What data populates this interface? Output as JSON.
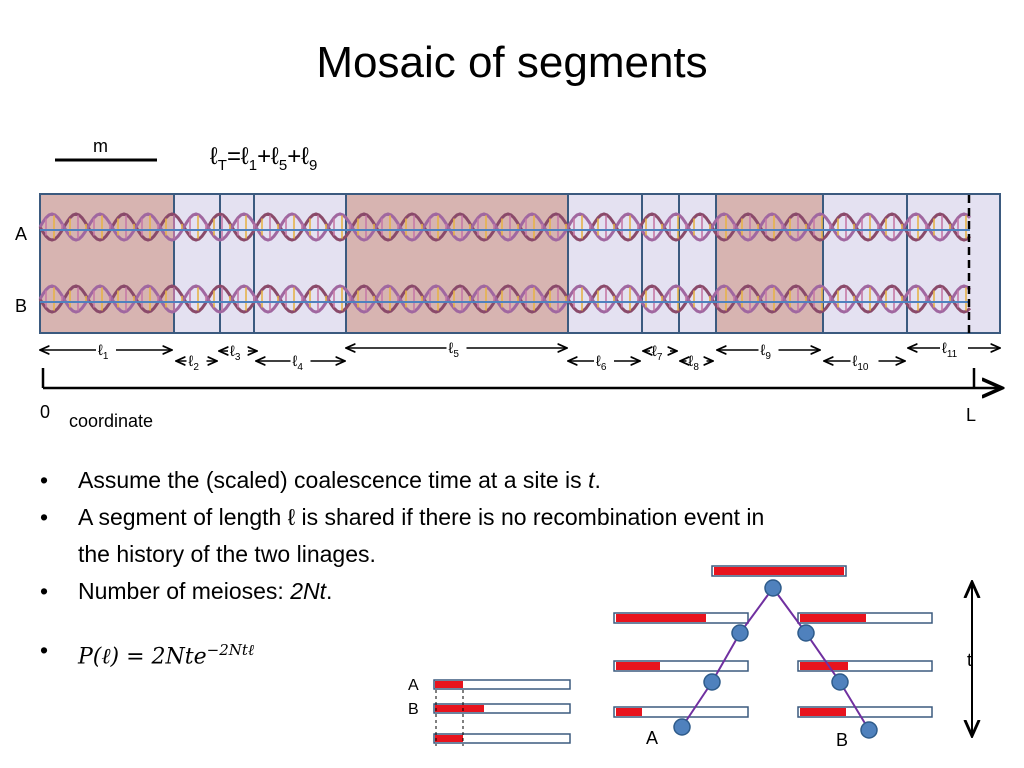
{
  "title": "Mosaic of segments",
  "scale_label": "m",
  "formula_total": {
    "base": "ℓ",
    "sub": "T",
    "eq": "=ℓ",
    "s1": "1",
    "plus1": "+ℓ",
    "s5": "5",
    "plus2": "+ℓ",
    "s9": "9"
  },
  "chromosome_labels": {
    "a": "A",
    "b": "B"
  },
  "segments": [
    {
      "label": "ℓ",
      "sub": "1",
      "shared": true
    },
    {
      "label": "ℓ",
      "sub": "2",
      "shared": false
    },
    {
      "label": "ℓ",
      "sub": "3",
      "shared": false
    },
    {
      "label": "ℓ",
      "sub": "4",
      "shared": false
    },
    {
      "label": "ℓ",
      "sub": "5",
      "shared": true
    },
    {
      "label": "ℓ",
      "sub": "6",
      "shared": false
    },
    {
      "label": "ℓ",
      "sub": "7",
      "shared": false
    },
    {
      "label": "ℓ",
      "sub": "8",
      "shared": false
    },
    {
      "label": "ℓ",
      "sub": "9",
      "shared": true
    },
    {
      "label": "ℓ",
      "sub": "10",
      "shared": false
    },
    {
      "label": "ℓ",
      "sub": "11",
      "shared": false
    }
  ],
  "axis": {
    "start": "0",
    "end": "L",
    "label": "coordinate"
  },
  "bullets": {
    "b1_pre": "Assume the (scaled) coalescence time at a site is ",
    "b1_var": "t",
    "b1_post": ".",
    "b2_line1": "A segment of length ℓ is shared if there is no recombination event in",
    "b2_line2": "the history of the two linages.",
    "b3_pre": "Number of meioses: ",
    "b3_var": "2Nt",
    "b3_post": ".",
    "b4_formula": "P(ℓ) = 2Nte",
    "b4_exp": "−2Ntℓ"
  },
  "small_diagram": {
    "label_a": "A",
    "label_b": "B"
  },
  "tree": {
    "leaf_a": "A",
    "leaf_b": "B",
    "time_label": "t"
  },
  "colors": {
    "shared": "#d7b4b1",
    "unshared": "#e4e1f1",
    "border": "#3b5a7f",
    "red": "#e8141e",
    "node": "#4f81bd",
    "edge": "#7030a0"
  }
}
